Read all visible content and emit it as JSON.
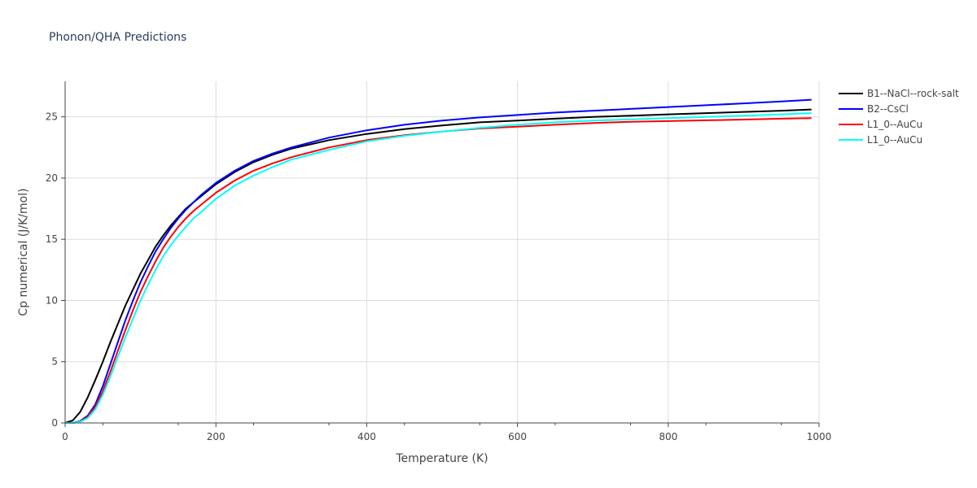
{
  "chart_data": {
    "type": "line",
    "title": "Phonon/QHA Predictions",
    "xlabel": "Temperature (K)",
    "ylabel": "Cp numerical (J/K/mol)",
    "xlim": [
      0,
      1000
    ],
    "ylim": [
      0,
      27.9
    ],
    "xticks": [
      0,
      200,
      400,
      600,
      800,
      1000
    ],
    "xtick_labels": [
      "0",
      "200",
      "400",
      "600",
      "800",
      "1000"
    ],
    "yticks": [
      0,
      5,
      10,
      15,
      20,
      25
    ],
    "ytick_labels": [
      "0",
      "5",
      "10",
      "15",
      "20",
      "25"
    ],
    "grid": true,
    "legend_position": "top-right",
    "series": [
      {
        "name": "B1--NaCl--rock-salt",
        "color": "#000000",
        "x": [
          0,
          10,
          20,
          30,
          40,
          50,
          60,
          70,
          80,
          90,
          100,
          110,
          120,
          130,
          140,
          150,
          160,
          170,
          180,
          200,
          225,
          250,
          275,
          300,
          350,
          400,
          450,
          500,
          550,
          600,
          650,
          700,
          750,
          800,
          850,
          900,
          950,
          990
        ],
        "y": [
          0,
          0.2,
          0.9,
          2.1,
          3.5,
          5.0,
          6.6,
          8.1,
          9.6,
          10.9,
          12.2,
          13.3,
          14.4,
          15.3,
          16.1,
          16.8,
          17.5,
          18.0,
          18.5,
          19.5,
          20.5,
          21.3,
          21.9,
          22.4,
          23.1,
          23.6,
          24.0,
          24.3,
          24.55,
          24.7,
          24.85,
          25.0,
          25.1,
          25.2,
          25.3,
          25.4,
          25.5,
          25.6
        ]
      },
      {
        "name": "B2--CsCl",
        "color": "#0000ff",
        "x": [
          0,
          10,
          20,
          30,
          40,
          50,
          60,
          70,
          80,
          90,
          100,
          110,
          120,
          130,
          140,
          150,
          160,
          170,
          180,
          200,
          225,
          250,
          275,
          300,
          350,
          400,
          450,
          500,
          550,
          600,
          650,
          700,
          750,
          800,
          850,
          900,
          950,
          990
        ],
        "y": [
          0,
          0,
          0.15,
          0.6,
          1.5,
          3.0,
          4.8,
          6.6,
          8.4,
          10.0,
          11.5,
          12.8,
          14.0,
          15.0,
          15.9,
          16.7,
          17.4,
          18.0,
          18.6,
          19.6,
          20.6,
          21.4,
          22.0,
          22.5,
          23.3,
          23.9,
          24.35,
          24.7,
          24.95,
          25.15,
          25.35,
          25.5,
          25.65,
          25.8,
          25.95,
          26.1,
          26.25,
          26.4
        ]
      },
      {
        "name": "L1_0--AuCu",
        "color": "#ff0000",
        "x": [
          0,
          10,
          20,
          30,
          40,
          50,
          60,
          70,
          80,
          90,
          100,
          110,
          120,
          130,
          140,
          150,
          160,
          170,
          180,
          200,
          225,
          250,
          275,
          300,
          350,
          400,
          450,
          500,
          550,
          600,
          650,
          700,
          750,
          800,
          850,
          900,
          950,
          990
        ],
        "y": [
          0,
          0,
          0.1,
          0.5,
          1.3,
          2.6,
          4.2,
          5.9,
          7.6,
          9.2,
          10.7,
          12.0,
          13.2,
          14.3,
          15.2,
          16.0,
          16.7,
          17.3,
          17.8,
          18.8,
          19.8,
          20.6,
          21.2,
          21.7,
          22.5,
          23.1,
          23.5,
          23.8,
          24.05,
          24.2,
          24.35,
          24.5,
          24.6,
          24.65,
          24.72,
          24.78,
          24.85,
          24.9
        ]
      },
      {
        "name": "L1_0--AuCu",
        "color": "#00ffff",
        "x": [
          0,
          10,
          20,
          30,
          40,
          50,
          60,
          70,
          80,
          90,
          100,
          110,
          120,
          130,
          140,
          150,
          160,
          170,
          180,
          200,
          225,
          250,
          275,
          300,
          350,
          400,
          450,
          500,
          550,
          600,
          650,
          700,
          750,
          800,
          850,
          900,
          950,
          990
        ],
        "y": [
          0,
          0,
          0.1,
          0.4,
          1.1,
          2.3,
          3.8,
          5.4,
          7.0,
          8.5,
          10.0,
          11.3,
          12.5,
          13.6,
          14.5,
          15.3,
          16.0,
          16.7,
          17.2,
          18.3,
          19.4,
          20.2,
          20.9,
          21.5,
          22.3,
          23.0,
          23.45,
          23.8,
          24.1,
          24.35,
          24.55,
          24.7,
          24.8,
          24.9,
          25.0,
          25.1,
          25.2,
          25.3
        ]
      }
    ]
  }
}
